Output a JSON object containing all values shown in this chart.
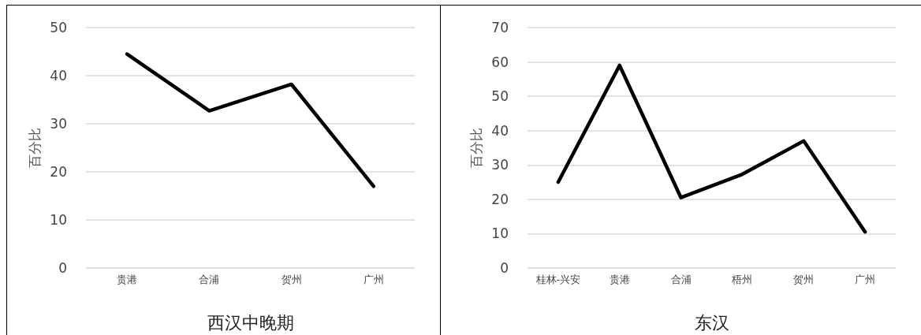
{
  "chart_data": [
    {
      "type": "line",
      "xlabel": "西汉中晚期",
      "ylabel": "百分比",
      "categories": [
        "贵港",
        "合浦",
        "贺州",
        "广州"
      ],
      "series": [
        {
          "color": "#000000",
          "values": [
            44.5,
            32.7,
            38.2,
            17
          ]
        }
      ],
      "ylim": [
        0,
        50
      ],
      "yticks": [
        0,
        10,
        20,
        30,
        40,
        50
      ],
      "grid": "y",
      "marker": "none",
      "line_style": "solid"
    },
    {
      "type": "line",
      "xlabel": "东汉",
      "ylabel": "百分比",
      "categories": [
        "桂林-兴安",
        "贵港",
        "合浦",
        "梧州",
        "贺州",
        "广州"
      ],
      "series": [
        {
          "color": "#000000",
          "values": [
            25,
            59,
            20.5,
            27.3,
            37,
            10.5
          ]
        }
      ],
      "ylim": [
        0,
        70
      ],
      "yticks": [
        0,
        10,
        20,
        30,
        40,
        50,
        60,
        70
      ],
      "grid": "y",
      "marker": "none",
      "line_style": "solid"
    }
  ]
}
